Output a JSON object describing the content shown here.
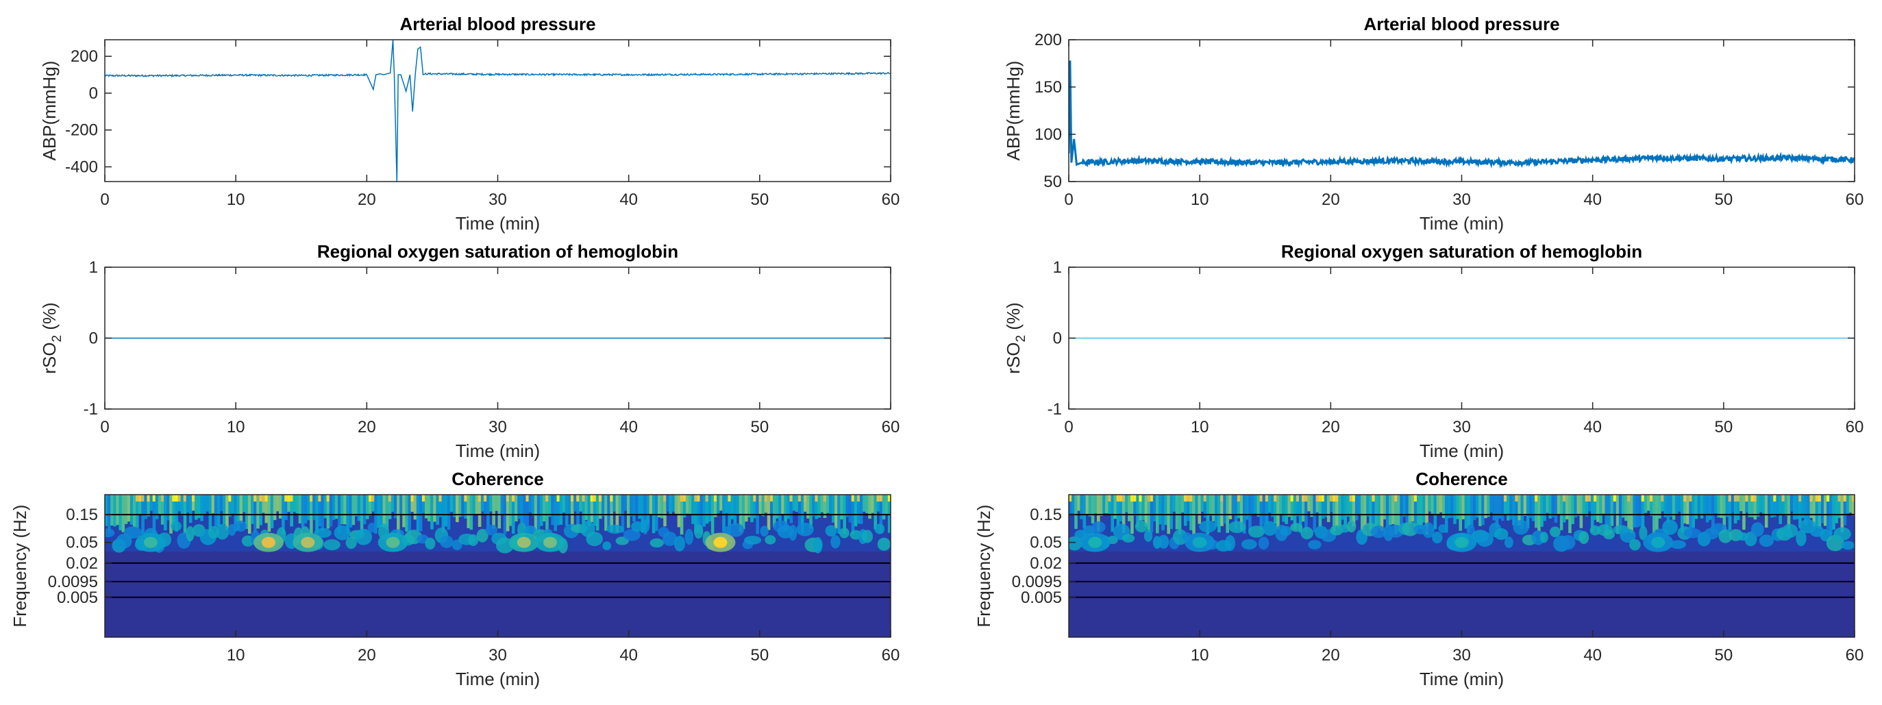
{
  "chart_data": [
    {
      "type": "line",
      "title": "Arterial blood pressure",
      "xlabel": "Time (min)",
      "ylabel": "ABP(mmHg)",
      "xlim": [
        0,
        60
      ],
      "ylim": [
        -480,
        290
      ],
      "xticks": [
        0,
        10,
        20,
        30,
        40,
        50,
        60
      ],
      "yticks": [
        200,
        0,
        -200,
        -400
      ],
      "color": "#0072BD",
      "series": [
        {
          "name": "ABP",
          "x": [
            0,
            5,
            10,
            15,
            20,
            20.5,
            20.7,
            21.0,
            21.3,
            21.8,
            22.0,
            22.1,
            22.3,
            22.4,
            22.6,
            23.0,
            23.3,
            23.5,
            23.7,
            23.9,
            24.1,
            24.3,
            24.5,
            30,
            40,
            50,
            60
          ],
          "values": [
            95,
            95,
            98,
            96,
            100,
            20,
            100,
            105,
            100,
            110,
            290,
            100,
            -480,
            100,
            100,
            10,
            100,
            -100,
            100,
            240,
            250,
            100,
            105,
            102,
            100,
            103,
            108
          ]
        }
      ]
    },
    {
      "type": "line",
      "title": "Arterial blood pressure",
      "xlabel": "Time (min)",
      "ylabel": "ABP(mmHg)",
      "xlim": [
        0,
        60
      ],
      "ylim": [
        50,
        200
      ],
      "xticks": [
        0,
        10,
        20,
        30,
        40,
        50,
        60
      ],
      "yticks": [
        200,
        150,
        100,
        50
      ],
      "color": "#0072BD",
      "series": [
        {
          "name": "ABP",
          "x": [
            0,
            0.1,
            0.2,
            0.4,
            0.6,
            1,
            5,
            10,
            15,
            20,
            25,
            30,
            35,
            40,
            45,
            50,
            55,
            60
          ],
          "values": [
            80,
            178,
            70,
            95,
            68,
            70,
            72,
            71,
            70,
            71,
            72,
            71,
            70,
            73,
            75,
            74,
            75,
            73
          ]
        }
      ]
    },
    {
      "type": "line",
      "title": "Regional oxygen saturation of hemoglobin",
      "xlabel": "Time (min)",
      "ylabel": "rSO",
      "ylabel_sub": "2",
      "ylabel_tail": " (%)",
      "xlim": [
        0,
        60
      ],
      "ylim": [
        -1,
        1
      ],
      "xticks": [
        0,
        10,
        20,
        30,
        40,
        50,
        60
      ],
      "yticks": [
        1,
        0,
        -1
      ],
      "color": "#0072BD",
      "series": [
        {
          "name": "rSO2",
          "x": [
            0,
            60
          ],
          "values": [
            0,
            0
          ]
        }
      ]
    },
    {
      "type": "line",
      "title": "Regional oxygen saturation of hemoglobin",
      "xlabel": "Time (min)",
      "ylabel": "rSO",
      "ylabel_sub": "2",
      "ylabel_tail": " (%)",
      "xlim": [
        0,
        60
      ],
      "ylim": [
        -1,
        1
      ],
      "xticks": [
        0,
        10,
        20,
        30,
        40,
        50,
        60
      ],
      "yticks": [
        1,
        0,
        -1
      ],
      "color": "#4DBEEE",
      "series": [
        {
          "name": "rSO2",
          "x": [
            0,
            60
          ],
          "values": [
            0,
            0
          ]
        }
      ]
    },
    {
      "type": "heatmap",
      "title": "Coherence",
      "xlabel": "Time (min)",
      "ylabel": "Frequency (Hz)",
      "xlim": [
        0,
        60
      ],
      "xticks": [
        10,
        20,
        30,
        40,
        50,
        60
      ],
      "yticks": [
        "0.15",
        "0.05",
        "0.02",
        "0.0095",
        "0.005"
      ],
      "band_lines": [
        "0.15",
        "0.02",
        "0.0095",
        "0.005"
      ],
      "hotspots": [
        {
          "t": 12.5,
          "band": "0.05",
          "value": 0.8
        },
        {
          "t": 15.5,
          "band": "0.05",
          "value": 0.7
        },
        {
          "t": 32,
          "band": "0.05",
          "value": 0.65
        },
        {
          "t": 34,
          "band": "0.05",
          "value": 0.6
        },
        {
          "t": 47,
          "band": "0.05",
          "value": 0.9
        },
        {
          "t": 3.5,
          "band": "0.05",
          "value": 0.5
        },
        {
          "t": 22,
          "band": "0.05",
          "value": 0.55
        }
      ]
    },
    {
      "type": "heatmap",
      "title": "Coherence",
      "xlabel": "Time (min)",
      "ylabel": "Frequency (Hz)",
      "xlim": [
        0,
        60
      ],
      "xticks": [
        10,
        20,
        30,
        40,
        50,
        60
      ],
      "yticks": [
        "0.15",
        "0.05",
        "0.02",
        "0.0095",
        "0.005"
      ],
      "band_lines": [
        "0.15",
        "0.02",
        "0.0095",
        "0.005"
      ],
      "hotspots": [
        {
          "t": 2,
          "band": "0.05",
          "value": 0.45
        },
        {
          "t": 10,
          "band": "0.05",
          "value": 0.4
        },
        {
          "t": 30,
          "band": "0.05",
          "value": 0.45
        },
        {
          "t": 45,
          "band": "0.05",
          "value": 0.4
        }
      ]
    }
  ]
}
